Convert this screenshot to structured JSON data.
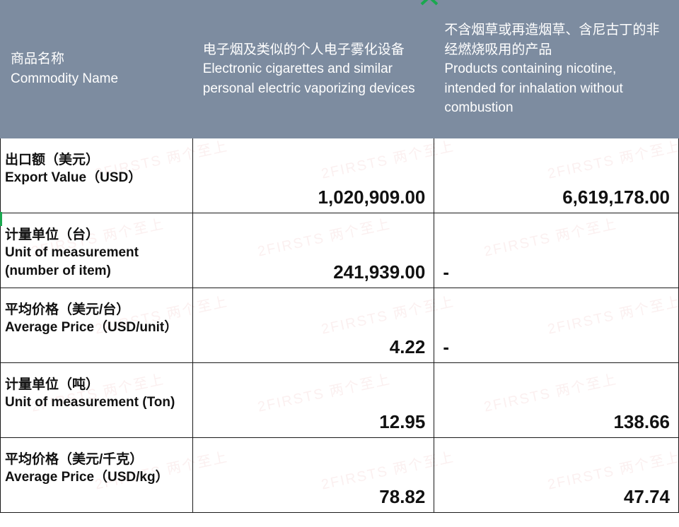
{
  "header": {
    "bg": "#7d8ca0",
    "fg": "#ffffff",
    "col1_cn": "商品名称",
    "col1_en": "Commodity Name",
    "col2_cn": "电子烟及类似的个人电子雾化设备",
    "col2_en": "Electronic cigarettes and similar personal electric vaporizing devices",
    "col3_cn": "不含烟草或再造烟草、含尼古丁的非经燃烧吸用的产品",
    "col3_en": "Products containing nicotine, intended for inhalation without combustion"
  },
  "rows": [
    {
      "label_cn": "出口额（美元）",
      "label_en": " Export Value（USD）",
      "c2": "1,020,909.00",
      "c3": "6,619,178.00"
    },
    {
      "label_cn": "计量单位（台）",
      "label_en": "Unit of measurement (number of item)",
      "c2": "241,939.00",
      "c3": "-"
    },
    {
      "label_cn": "平均价格（美元/台）",
      "label_en": "Average Price（USD/unit）",
      "c2": "4.22",
      "c3": "-"
    },
    {
      "label_cn": "计量单位（吨）",
      "label_en": "Unit of measurement (Ton)",
      "c2": "12.95",
      "c3": "138.66"
    },
    {
      "label_cn": "平均价格（美元/千克）",
      "label_en": "Average Price（USD/kg）",
      "c2": "78.82",
      "c3": "47.74"
    }
  ],
  "watermark": {
    "text": "2FIRSTS 两个至上",
    "color": "rgba(200,60,70,0.08)"
  },
  "accent_green": "#1aa84f",
  "border_color": "#1a1a1a",
  "value_font_size": 26,
  "label_font_size": 19
}
